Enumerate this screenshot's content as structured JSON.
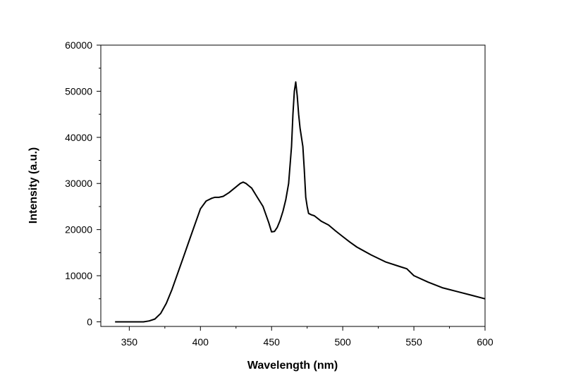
{
  "chart_data": {
    "type": "line",
    "title": "",
    "xlabel": "Wavelength (nm)",
    "ylabel": "Intensity (a.u.)",
    "xlim": [
      330,
      600
    ],
    "ylim": [
      -1000,
      60000
    ],
    "x_ticks": [
      350,
      400,
      450,
      500,
      550,
      600
    ],
    "x_minor_ticks": [
      375,
      425,
      475,
      525,
      575
    ],
    "y_ticks": [
      0,
      10000,
      20000,
      30000,
      40000,
      50000,
      60000
    ],
    "y_minor_ticks": [
      5000,
      15000,
      25000,
      35000,
      45000,
      55000
    ],
    "grid": false,
    "legend": "none",
    "series": [
      {
        "color": "#000000",
        "x": [
          340,
          350,
          360,
          364,
          368,
          372,
          376,
          380,
          384,
          388,
          392,
          396,
          400,
          404,
          408,
          410,
          413,
          416,
          420,
          424,
          428,
          430,
          432,
          434,
          436,
          440,
          444,
          448,
          450,
          452,
          454,
          456,
          458,
          460,
          462,
          464,
          465,
          466,
          467,
          468,
          469,
          470,
          471,
          472,
          473,
          474,
          475,
          476,
          478,
          480,
          485,
          490,
          495,
          500,
          505,
          510,
          520,
          530,
          540,
          545,
          550,
          560,
          570,
          580,
          590,
          600
        ],
        "y": [
          0,
          0,
          0,
          200,
          600,
          1800,
          4000,
          7000,
          10500,
          14000,
          17500,
          21000,
          24500,
          26200,
          26800,
          27000,
          27000,
          27200,
          28000,
          29000,
          30000,
          30300,
          30000,
          29500,
          29000,
          27000,
          25000,
          21500,
          19500,
          19600,
          20500,
          22000,
          24000,
          26500,
          30000,
          38000,
          45000,
          50000,
          52000,
          49000,
          45000,
          42000,
          40000,
          38000,
          33000,
          27000,
          25000,
          23500,
          23200,
          23000,
          21800,
          21000,
          19700,
          18500,
          17300,
          16200,
          14500,
          13000,
          12000,
          11500,
          10000,
          8600,
          7400,
          6600,
          5800,
          5000
        ]
      }
    ]
  }
}
